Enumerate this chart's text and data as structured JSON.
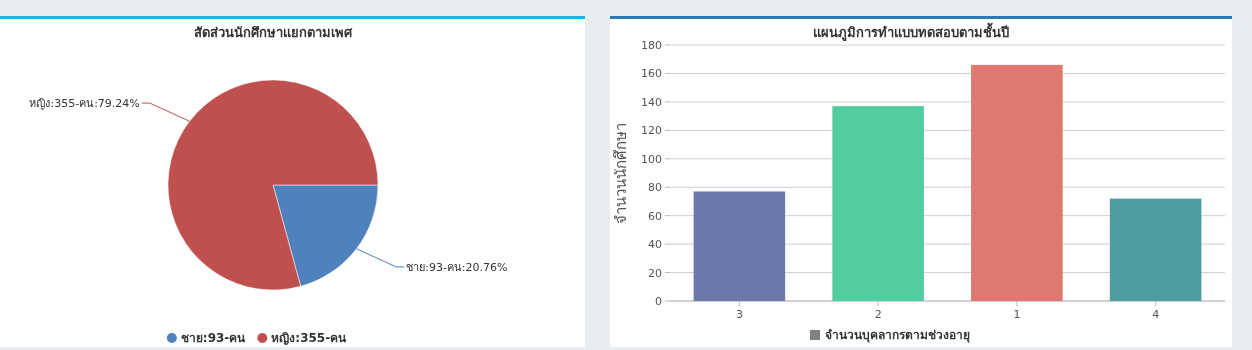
{
  "chart_data": [
    {
      "type": "pie",
      "title": "สัดส่วนนักศึกษาแยกตามเพศ",
      "categories": [
        "ชาย:93-คน",
        "หญิง:355-คน"
      ],
      "values": [
        93,
        355
      ],
      "colors": [
        "#4f81bc",
        "#c0504e"
      ],
      "value_labels": [
        "ชาย:93-คน:20.76%",
        "หญิง:355-คน:79.24%"
      ],
      "legend": "bottom"
    },
    {
      "type": "bar",
      "title": "แผนภูมิการทำแบบทดสอบตามชั้นปี",
      "ylabel": "จำนวนนักศึกษา",
      "categories": [
        "3",
        "2",
        "1",
        "4"
      ],
      "series": [
        {
          "name": "จำนวนบุคลากรตามช่วงอายุ",
          "colors": [
            "#6d78ad",
            "#51cda0",
            "#df7970",
            "#4c9ca0"
          ],
          "values": [
            77,
            137,
            166,
            72
          ]
        }
      ],
      "ylim": [
        0,
        180
      ],
      "yticks": [
        0,
        20,
        40,
        60,
        80,
        100,
        120,
        140,
        160,
        180
      ],
      "grid": "y",
      "legend": "bottom"
    }
  ]
}
